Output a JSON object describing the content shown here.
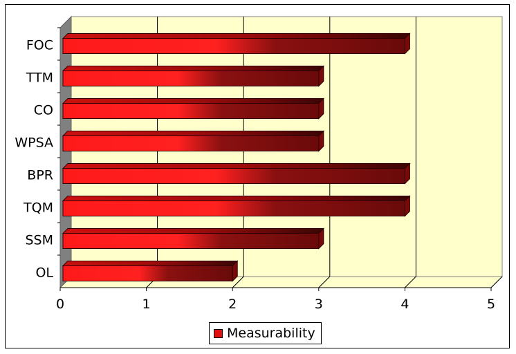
{
  "chart_data": {
    "type": "bar",
    "orientation": "horizontal",
    "style": "3d",
    "categories": [
      "OL",
      "SSM",
      "TQM",
      "BPR",
      "WPSA",
      "CO",
      "TTM",
      "FOC"
    ],
    "series": [
      {
        "name": "Measurability",
        "values": [
          2,
          3,
          4,
          4,
          3,
          3,
          3,
          4
        ]
      }
    ],
    "xlim": [
      0,
      5
    ],
    "x_ticks": [
      "0",
      "1",
      "2",
      "3",
      "4",
      "5"
    ],
    "grid": true,
    "legend_position": "bottom",
    "colors": {
      "bar_light": "#ff1a1a",
      "bar_dark": "#6e0c0c",
      "plot_background": "#ffffcc",
      "side_wall": "#808080"
    }
  }
}
